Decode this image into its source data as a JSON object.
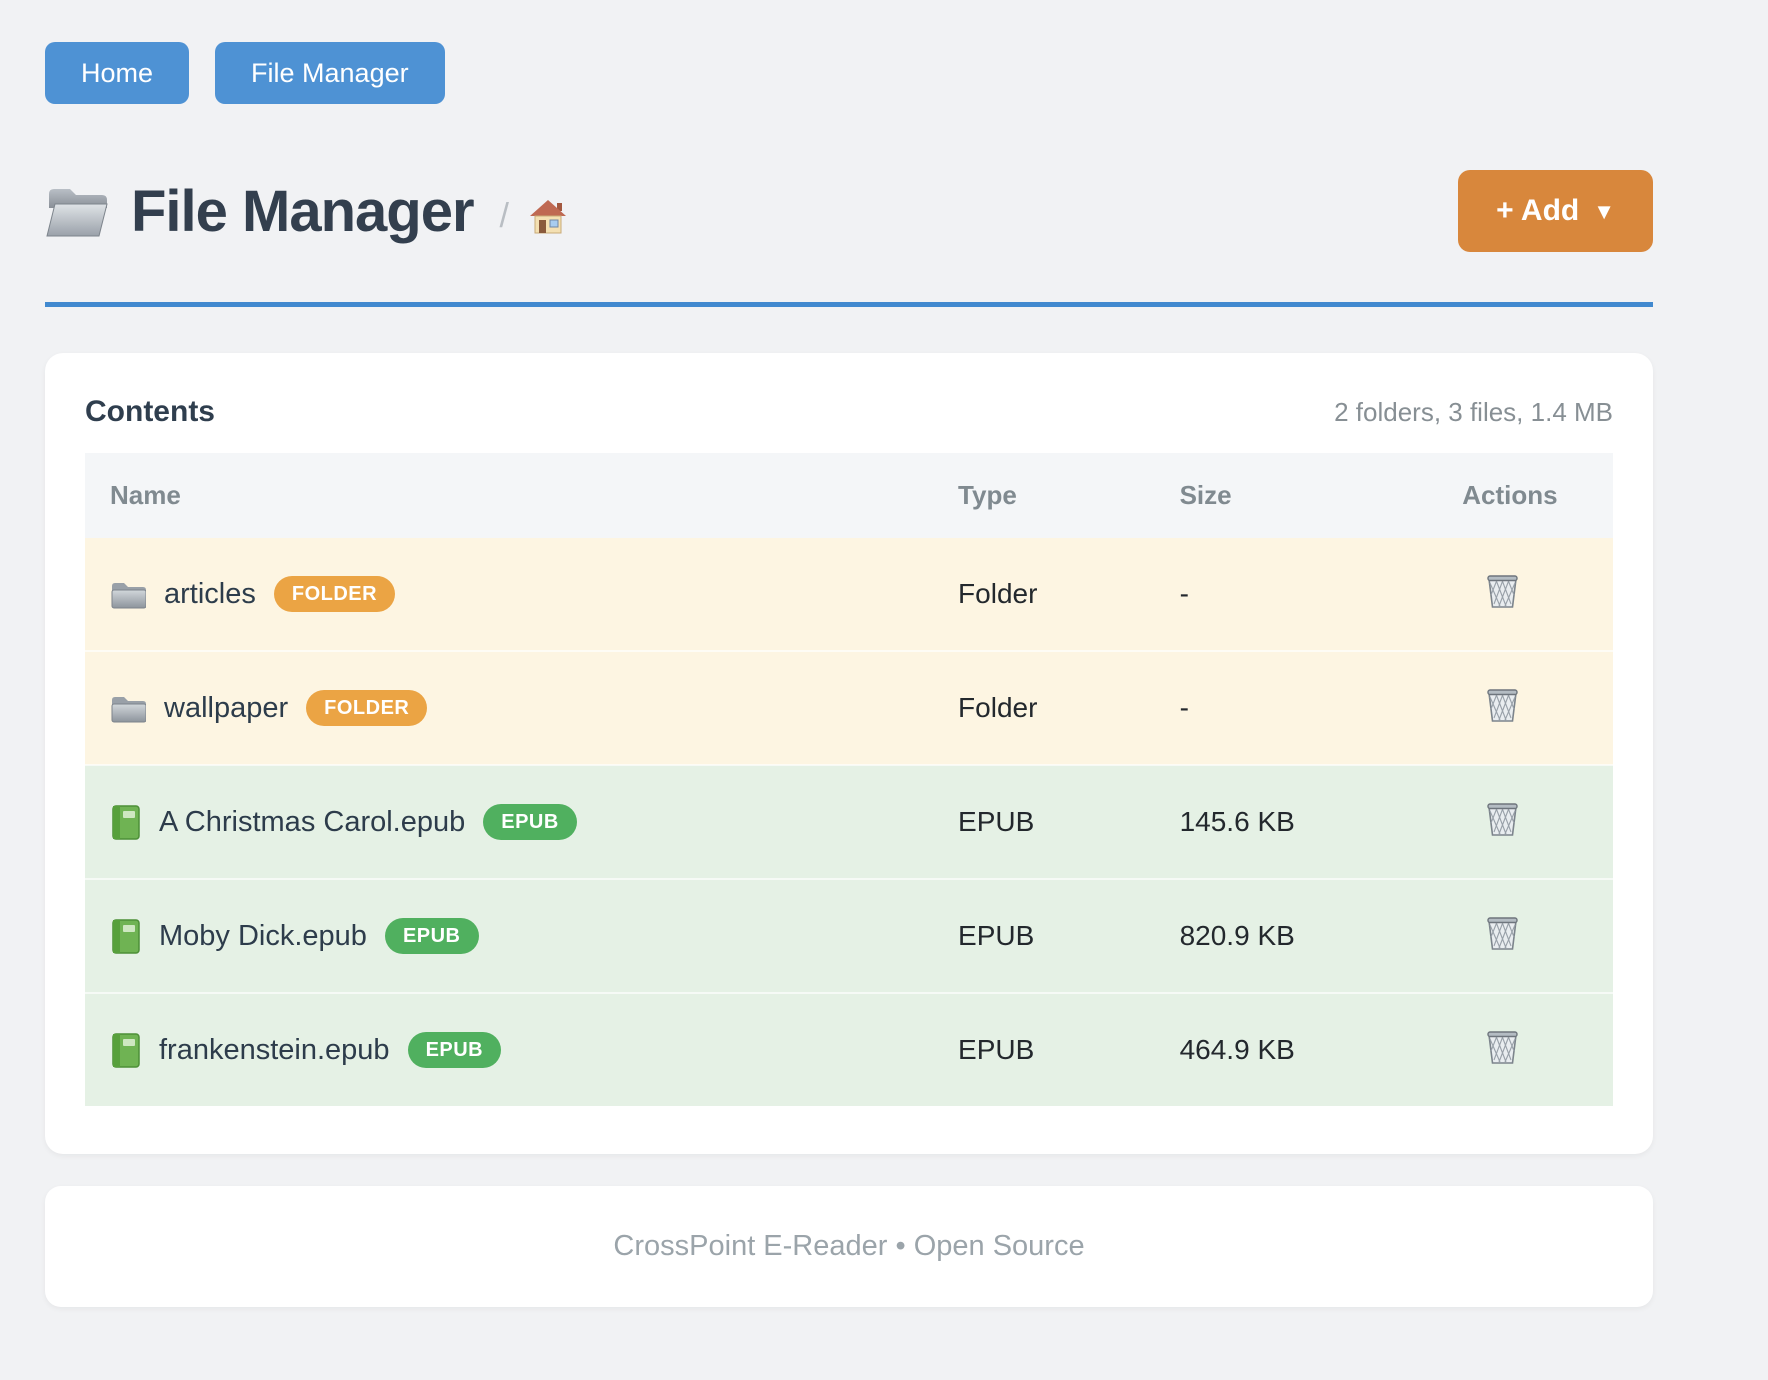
{
  "nav": {
    "buttons": [
      {
        "label": "Home"
      },
      {
        "label": "File Manager"
      }
    ]
  },
  "header": {
    "title": "File Manager",
    "breadcrumb_separator": "/",
    "add_label": "+ Add",
    "add_arrow": "▼"
  },
  "contents": {
    "heading": "Contents",
    "summary": "2 folders, 3 files, 1.4 MB",
    "columns": [
      "Name",
      "Type",
      "Size",
      "Actions"
    ],
    "rows": [
      {
        "name": "articles",
        "badge": "FOLDER",
        "kind": "folder",
        "type": "Folder",
        "size": "-"
      },
      {
        "name": "wallpaper",
        "badge": "FOLDER",
        "kind": "folder",
        "type": "Folder",
        "size": "-"
      },
      {
        "name": "A Christmas Carol.epub",
        "badge": "EPUB",
        "kind": "epub",
        "type": "EPUB",
        "size": "145.6 KB"
      },
      {
        "name": "Moby Dick.epub",
        "badge": "EPUB",
        "kind": "epub",
        "type": "EPUB",
        "size": "820.9 KB"
      },
      {
        "name": "frankenstein.epub",
        "badge": "EPUB",
        "kind": "epub",
        "type": "EPUB",
        "size": "464.9 KB"
      }
    ]
  },
  "footer": {
    "text": "CrossPoint E-Reader • Open Source"
  },
  "icons": {
    "page_title": "open-folder-icon",
    "breadcrumb": "house-icon",
    "folder_row": "folder-icon",
    "epub_row": "book-icon",
    "delete": "trash-icon"
  },
  "colors": {
    "page_background": "#f1f2f4",
    "nav_button_blue": "#4e92d4",
    "title_underline_blue": "#4189cf",
    "add_button_orange": "#d8873c",
    "folder_badge_orange": "#eba444",
    "epub_badge_green": "#50b05f",
    "folder_row_background": "#fdf5e2",
    "epub_row_background": "#e5f1e5"
  }
}
